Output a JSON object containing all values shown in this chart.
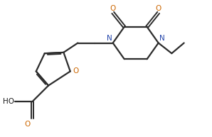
{
  "bg_color": "#ffffff",
  "line_color": "#2c2c2c",
  "line_width": 1.6,
  "font_size": 7.5,
  "O_color": "#cc6600",
  "N_color": "#2244aa",
  "text_color": "#1a1a1a",
  "xlim": [
    -0.5,
    10.5
  ],
  "ylim": [
    0.2,
    7.0
  ],
  "figsize": [
    2.98,
    1.93
  ],
  "dpi": 100
}
